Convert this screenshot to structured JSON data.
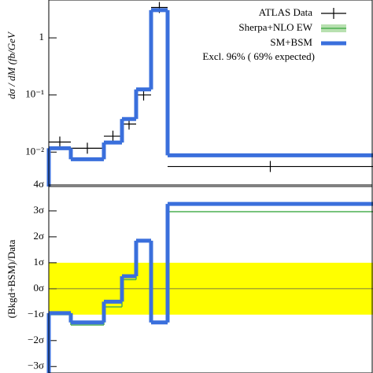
{
  "chart_data": [
    {
      "type": "histogram",
      "ylabel": "dσ / dM (fb/GeV",
      "bins": [
        0,
        28,
        70,
        93,
        111,
        130,
        151,
        412
      ],
      "xlim": [
        0,
        412
      ],
      "log_y": true,
      "ylim": [
        0.0025,
        4.6
      ],
      "yticks": [
        {
          "value": 0.01,
          "label": "10⁻²"
        },
        {
          "value": 0.1,
          "label": "10⁻¹"
        },
        1
      ],
      "legend": "upper right",
      "annotation": "Excl. 96% ( 69% expected)",
      "series": [
        {
          "name": "ATLAS Data",
          "color": "#000000",
          "style": "points",
          "values": [
            0.015,
            0.0117,
            0.019,
            0.031,
            0.1,
            3.4,
            0.0056
          ]
        },
        {
          "name": "Sherpa+NLO EW",
          "color": "#4caf50",
          "style": "step",
          "values": [
            0.0117,
            0.0075,
            0.0147,
            0.038,
            0.125,
            3.06,
            0.0088
          ]
        },
        {
          "name": "SM+BSM",
          "color": "#3a6fdc",
          "style": "step",
          "values": [
            0.0117,
            0.0075,
            0.0147,
            0.038,
            0.125,
            3.06,
            0.0088
          ]
        }
      ]
    },
    {
      "type": "histogram",
      "ylabel": "(Bkgd+BSM)/Data",
      "bins": [
        0,
        28,
        70,
        93,
        111,
        130,
        151,
        412
      ],
      "xlim": [
        0,
        412
      ],
      "ylim": [
        -3.25,
        4
      ],
      "yticks": [
        {
          "value": -3,
          "label": "−3σ"
        },
        {
          "value": -2,
          "label": "−2σ"
        },
        {
          "value": -1,
          "label": "−1σ"
        },
        {
          "value": 0,
          "label": "0σ"
        },
        {
          "value": 1,
          "label": "1σ"
        },
        {
          "value": 2,
          "label": "2σ"
        },
        {
          "value": 3,
          "label": "3σ"
        },
        {
          "value": 4,
          "label": "4σ"
        }
      ],
      "band": {
        "range": [
          -1,
          1
        ],
        "color": "#ffff00"
      },
      "series": [
        {
          "color": "#4caf50",
          "style": "step",
          "values": [
            -1.0,
            -1.4,
            -0.7,
            0.35,
            1.85,
            -1.3,
            2.97
          ]
        },
        {
          "color": "#3a6fdc",
          "style": "step",
          "values": [
            -0.94,
            -1.3,
            -0.5,
            0.48,
            1.85,
            -1.3,
            3.27
          ]
        }
      ]
    }
  ]
}
